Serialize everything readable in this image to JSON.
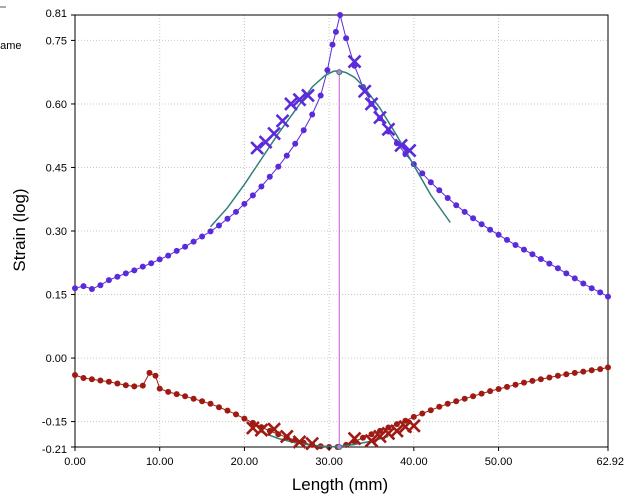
{
  "chart_data": {
    "type": "scatter",
    "title": "",
    "xlabel": "Length  (mm)",
    "ylabel": "Strain (log)",
    "xlim": [
      0,
      62.92
    ],
    "ylim": [
      -0.21,
      0.81
    ],
    "x_ticks": [
      "0.00",
      "10.00",
      "20.00",
      "30.00",
      "40.00",
      "50.00",
      "62.92"
    ],
    "y_ticks": [
      "0.81",
      "0.75",
      "0.60",
      "0.45",
      "0.30",
      "0.15",
      "0.00",
      "-0.15",
      "-0.21"
    ],
    "y_tick_values": [
      0.81,
      0.75,
      0.6,
      0.45,
      0.3,
      0.15,
      0.0,
      -0.15,
      -0.21
    ],
    "grid": true,
    "clipped_text": "name",
    "marker_x": 31.2,
    "colors": {
      "major": "#5b2bdb",
      "minor": "#a01a14",
      "fit": "#2f7f78",
      "marker": "#c878d8",
      "grid": "#c8c8c8"
    },
    "series": [
      {
        "values": [
          [
            0,
            0.165
          ],
          [
            1,
            0.17
          ],
          [
            2,
            0.163
          ],
          [
            3,
            0.172
          ],
          [
            4,
            0.184
          ],
          [
            5,
            0.192
          ],
          [
            6,
            0.2
          ],
          [
            7,
            0.207
          ],
          [
            8,
            0.216
          ],
          [
            9,
            0.224
          ],
          [
            10,
            0.233
          ],
          [
            11,
            0.242
          ],
          [
            12,
            0.253
          ],
          [
            13,
            0.263
          ],
          [
            14,
            0.275
          ],
          [
            15,
            0.287
          ],
          [
            16,
            0.299
          ],
          [
            17,
            0.313
          ],
          [
            18,
            0.329
          ],
          [
            19,
            0.345
          ],
          [
            20,
            0.364
          ],
          [
            21,
            0.384
          ],
          [
            22,
            0.405
          ],
          [
            23,
            0.428
          ],
          [
            24,
            0.452
          ],
          [
            25,
            0.478
          ],
          [
            26,
            0.506
          ],
          [
            27,
            0.538
          ],
          [
            28,
            0.575
          ],
          [
            29,
            0.62
          ],
          [
            29.8,
            0.68
          ],
          [
            30.4,
            0.74
          ],
          [
            30.8,
            0.77
          ],
          [
            31.3,
            0.81
          ],
          [
            32,
            0.755
          ],
          [
            33,
            0.69
          ],
          [
            34,
            0.64
          ],
          [
            35,
            0.6
          ],
          [
            36,
            0.566
          ],
          [
            37,
            0.535
          ],
          [
            38,
            0.507
          ],
          [
            39,
            0.482
          ],
          [
            40,
            0.458
          ],
          [
            41,
            0.436
          ],
          [
            42,
            0.415
          ],
          [
            43,
            0.396
          ],
          [
            44,
            0.378
          ],
          [
            45,
            0.361
          ],
          [
            46,
            0.345
          ],
          [
            47,
            0.33
          ],
          [
            48,
            0.316
          ],
          [
            49,
            0.303
          ],
          [
            50,
            0.291
          ],
          [
            51,
            0.279
          ],
          [
            52,
            0.267
          ],
          [
            53,
            0.256
          ],
          [
            54,
            0.245
          ],
          [
            55,
            0.234
          ],
          [
            56,
            0.223
          ],
          [
            57,
            0.212
          ],
          [
            58,
            0.2
          ],
          [
            59,
            0.188
          ],
          [
            60,
            0.176
          ],
          [
            61,
            0.165
          ],
          [
            62,
            0.155
          ],
          [
            62.92,
            0.145
          ]
        ]
      },
      {
        "values": [
          [
            0,
            -0.04
          ],
          [
            1,
            -0.047
          ],
          [
            2,
            -0.05
          ],
          [
            3,
            -0.053
          ],
          [
            4,
            -0.056
          ],
          [
            5,
            -0.06
          ],
          [
            6,
            -0.064
          ],
          [
            7,
            -0.067
          ],
          [
            8,
            -0.065
          ],
          [
            8.8,
            -0.035
          ],
          [
            9.5,
            -0.042
          ],
          [
            10,
            -0.072
          ],
          [
            11,
            -0.08
          ],
          [
            12,
            -0.085
          ],
          [
            13,
            -0.09
          ],
          [
            14,
            -0.096
          ],
          [
            15,
            -0.102
          ],
          [
            16,
            -0.108
          ],
          [
            17,
            -0.116
          ],
          [
            18,
            -0.124
          ],
          [
            19,
            -0.133
          ],
          [
            20,
            -0.143
          ],
          [
            21,
            -0.153
          ],
          [
            22,
            -0.163
          ],
          [
            23,
            -0.172
          ],
          [
            24,
            -0.18
          ],
          [
            25,
            -0.187
          ],
          [
            26,
            -0.194
          ],
          [
            27,
            -0.2
          ],
          [
            28,
            -0.205
          ],
          [
            29,
            -0.208
          ],
          [
            30,
            -0.21
          ],
          [
            31,
            -0.21
          ],
          [
            32,
            -0.205
          ],
          [
            33,
            -0.197
          ],
          [
            34,
            -0.188
          ],
          [
            35,
            -0.18
          ],
          [
            36,
            -0.172
          ],
          [
            37,
            -0.164
          ],
          [
            38,
            -0.156
          ],
          [
            39,
            -0.148
          ],
          [
            40,
            -0.139
          ],
          [
            41,
            -0.131
          ],
          [
            42,
            -0.123
          ],
          [
            43,
            -0.115
          ],
          [
            44,
            -0.108
          ],
          [
            45,
            -0.102
          ],
          [
            46,
            -0.096
          ],
          [
            47,
            -0.09
          ],
          [
            48,
            -0.084
          ],
          [
            49,
            -0.078
          ],
          [
            50,
            -0.073
          ],
          [
            51,
            -0.068
          ],
          [
            52,
            -0.063
          ],
          [
            53,
            -0.058
          ],
          [
            54,
            -0.054
          ],
          [
            55,
            -0.05
          ],
          [
            56,
            -0.046
          ],
          [
            57,
            -0.042
          ],
          [
            58,
            -0.038
          ],
          [
            59,
            -0.035
          ],
          [
            60,
            -0.032
          ],
          [
            61,
            -0.029
          ],
          [
            62,
            -0.026
          ],
          [
            62.92,
            -0.022
          ]
        ]
      },
      {
        "values": [
          [
            16,
            0.31
          ],
          [
            18,
            0.355
          ],
          [
            20,
            0.41
          ],
          [
            22,
            0.47
          ],
          [
            24,
            0.53
          ],
          [
            26,
            0.585
          ],
          [
            28,
            0.64
          ],
          [
            29.5,
            0.667
          ],
          [
            30.5,
            0.677
          ],
          [
            31.2,
            0.678
          ],
          [
            32,
            0.674
          ],
          [
            33,
            0.663
          ],
          [
            34,
            0.643
          ],
          [
            36,
            0.59
          ],
          [
            38,
            0.525
          ],
          [
            40,
            0.455
          ],
          [
            42,
            0.385
          ],
          [
            44.3,
            0.32
          ]
        ]
      },
      {
        "values": [
          [
            22,
            -0.175
          ],
          [
            24,
            -0.19
          ],
          [
            26,
            -0.2
          ],
          [
            28,
            -0.206
          ],
          [
            30,
            -0.209
          ],
          [
            31.2,
            -0.209
          ],
          [
            33,
            -0.204
          ],
          [
            35,
            -0.196
          ],
          [
            37,
            -0.185
          ]
        ]
      },
      {
        "values": [
          [
            21.5,
            0.496
          ],
          [
            22.5,
            0.51
          ],
          [
            23.5,
            0.53
          ],
          [
            24.5,
            0.56
          ],
          [
            25.5,
            0.6
          ],
          [
            26.5,
            0.61
          ],
          [
            27.5,
            0.62
          ],
          [
            33,
            0.7
          ],
          [
            34.2,
            0.63
          ],
          [
            35,
            0.6
          ],
          [
            36,
            0.568
          ],
          [
            37,
            0.54
          ],
          [
            38.5,
            0.502
          ],
          [
            39.5,
            0.49
          ]
        ]
      },
      {
        "values": [
          [
            21,
            -0.165
          ],
          [
            22,
            -0.17
          ],
          [
            23.5,
            -0.168
          ],
          [
            25,
            -0.185
          ],
          [
            26.5,
            -0.198
          ],
          [
            28,
            -0.202
          ],
          [
            33,
            -0.19
          ],
          [
            35,
            -0.195
          ],
          [
            36,
            -0.185
          ],
          [
            37,
            -0.178
          ],
          [
            38,
            -0.172
          ],
          [
            39,
            -0.162
          ],
          [
            40,
            -0.16
          ]
        ]
      },
      {
        "values": [
          [
            31.2,
            0.675
          ],
          [
            31.2,
            -0.21
          ]
        ]
      }
    ]
  }
}
